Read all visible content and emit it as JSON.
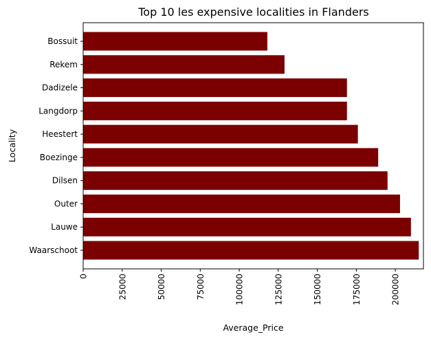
{
  "chart_data": {
    "type": "bar",
    "orientation": "horizontal",
    "title": "Top 10 les expensive localities in Flanders",
    "xlabel": "Average_Price",
    "ylabel": "Locality",
    "categories": [
      "Waarschoot",
      "Lauwe",
      "Outer",
      "Dilsen",
      "Boezinge",
      "Heestert",
      "Langdorp",
      "Dadizele",
      "Rekem",
      "Bossuit"
    ],
    "values": [
      215000,
      210000,
      203000,
      195000,
      189000,
      176000,
      169000,
      169000,
      129000,
      118000
    ],
    "xlim": [
      0,
      218000
    ],
    "x_ticks": [
      0,
      25000,
      50000,
      75000,
      100000,
      125000,
      150000,
      175000,
      200000
    ],
    "x_tick_labels": [
      "0",
      "25000",
      "50000",
      "75000",
      "100000",
      "125000",
      "150000",
      "175000",
      "200000"
    ],
    "bar_color": "#7b0000",
    "grid": false,
    "legend": "none"
  }
}
